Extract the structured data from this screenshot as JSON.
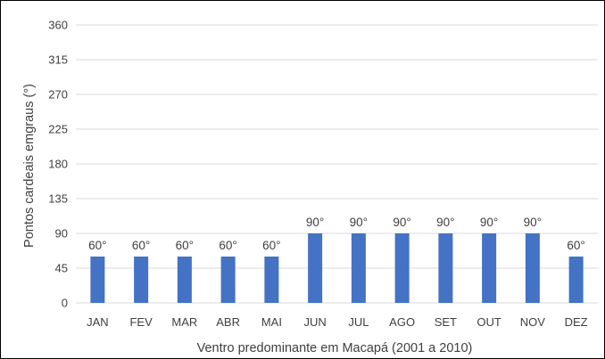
{
  "chart_data": {
    "type": "bar",
    "categories": [
      "JAN",
      "FEV",
      "MAR",
      "ABR",
      "MAI",
      "JUN",
      "JUL",
      "AGO",
      "SET",
      "OUT",
      "NOV",
      "DEZ"
    ],
    "values": [
      60,
      60,
      60,
      60,
      60,
      90,
      90,
      90,
      90,
      90,
      90,
      60
    ],
    "data_labels": [
      "60°",
      "60°",
      "60°",
      "60°",
      "60°",
      "90°",
      "90°",
      "90°",
      "90°",
      "90°",
      "90°",
      "60°"
    ],
    "yticks": [
      "0",
      "45",
      "90",
      "135",
      "180",
      "225",
      "270",
      "315",
      "360"
    ],
    "ylim": [
      0,
      360
    ],
    "xlabel": "Ventro predominante em Macapá (2001 a 2010)",
    "ylabel": "Pontos cardeais emgraus (°)",
    "title": "",
    "grid": true,
    "bar_color": "#4472c4",
    "grid_color": "#d9d9d9"
  }
}
